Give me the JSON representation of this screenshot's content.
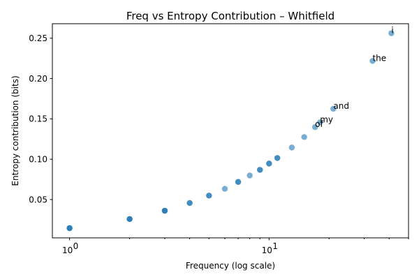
{
  "chart_data": {
    "type": "scatter",
    "title": "Freq vs Entropy Contribution – Whitfield",
    "xlabel": "Frequency (log scale)",
    "ylabel": "Entropy contribution (bits)",
    "xscale": "log",
    "xlim": [
      0.82,
      50
    ],
    "ylim": [
      0.0025,
      0.268
    ],
    "x_ticks": [
      {
        "value": 1,
        "label": "10",
        "sup": "0"
      },
      {
        "value": 10,
        "label": "10",
        "sup": "1"
      }
    ],
    "y_ticks": [
      0.05,
      0.1,
      0.15,
      0.2,
      0.25
    ],
    "y_tick_labels": [
      "0.05",
      "0.10",
      "0.15",
      "0.20",
      "0.25"
    ],
    "grid": false,
    "color": "#1f77b4",
    "points": [
      {
        "x": 1,
        "y": 0.0145
      },
      {
        "x": 1,
        "y": 0.0145
      },
      {
        "x": 1,
        "y": 0.0145
      },
      {
        "x": 2,
        "y": 0.0258
      },
      {
        "x": 2,
        "y": 0.0258
      },
      {
        "x": 2,
        "y": 0.0258
      },
      {
        "x": 3,
        "y": 0.0361
      },
      {
        "x": 3,
        "y": 0.0361
      },
      {
        "x": 3,
        "y": 0.0361
      },
      {
        "x": 4,
        "y": 0.0457
      },
      {
        "x": 4,
        "y": 0.0457
      },
      {
        "x": 5,
        "y": 0.0549
      },
      {
        "x": 5,
        "y": 0.0549
      },
      {
        "x": 6,
        "y": 0.0633
      },
      {
        "x": 7,
        "y": 0.0718
      },
      {
        "x": 7,
        "y": 0.0718
      },
      {
        "x": 8,
        "y": 0.0798
      },
      {
        "x": 9,
        "y": 0.0868
      },
      {
        "x": 9,
        "y": 0.0868
      },
      {
        "x": 10,
        "y": 0.0946
      },
      {
        "x": 10,
        "y": 0.0946
      },
      {
        "x": 11,
        "y": 0.1015
      },
      {
        "x": 11,
        "y": 0.1015
      },
      {
        "x": 13,
        "y": 0.1145
      },
      {
        "x": 15,
        "y": 0.1275
      },
      {
        "x": 17,
        "y": 0.1398
      },
      {
        "x": 18,
        "y": 0.1457
      },
      {
        "x": 21,
        "y": 0.1625
      },
      {
        "x": 33,
        "y": 0.2218
      },
      {
        "x": 41,
        "y": 0.2562
      }
    ],
    "annotations": [
      {
        "text": "i",
        "x": 41,
        "y": 0.2562
      },
      {
        "text": "the",
        "x": 33,
        "y": 0.2218
      },
      {
        "text": "and",
        "x": 21,
        "y": 0.1625
      },
      {
        "text": "my",
        "x": 18,
        "y": 0.1457
      },
      {
        "text": "of",
        "x": 17,
        "y": 0.1398
      }
    ]
  }
}
